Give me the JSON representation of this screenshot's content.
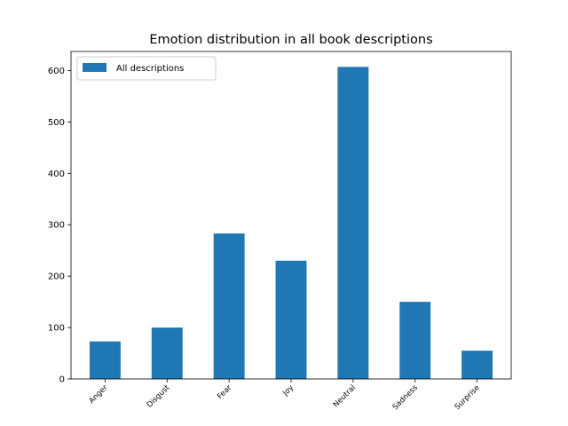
{
  "chart_data": {
    "type": "bar",
    "title": "Emotion distribution in all book descriptions",
    "xlabel": "",
    "ylabel": "",
    "categories": [
      "Anger",
      "Disgust",
      "Fear",
      "Joy",
      "Neutral",
      "Sadness",
      "Surprise"
    ],
    "series": [
      {
        "name": "All descriptions",
        "values": [
          73,
          100,
          283,
          230,
          607,
          150,
          55
        ],
        "color": "#1f77b4"
      }
    ],
    "ylim": [
      0,
      637
    ],
    "yticks": [
      0,
      100,
      200,
      300,
      400,
      500,
      600
    ],
    "legend": "top-left",
    "grid": false
  }
}
